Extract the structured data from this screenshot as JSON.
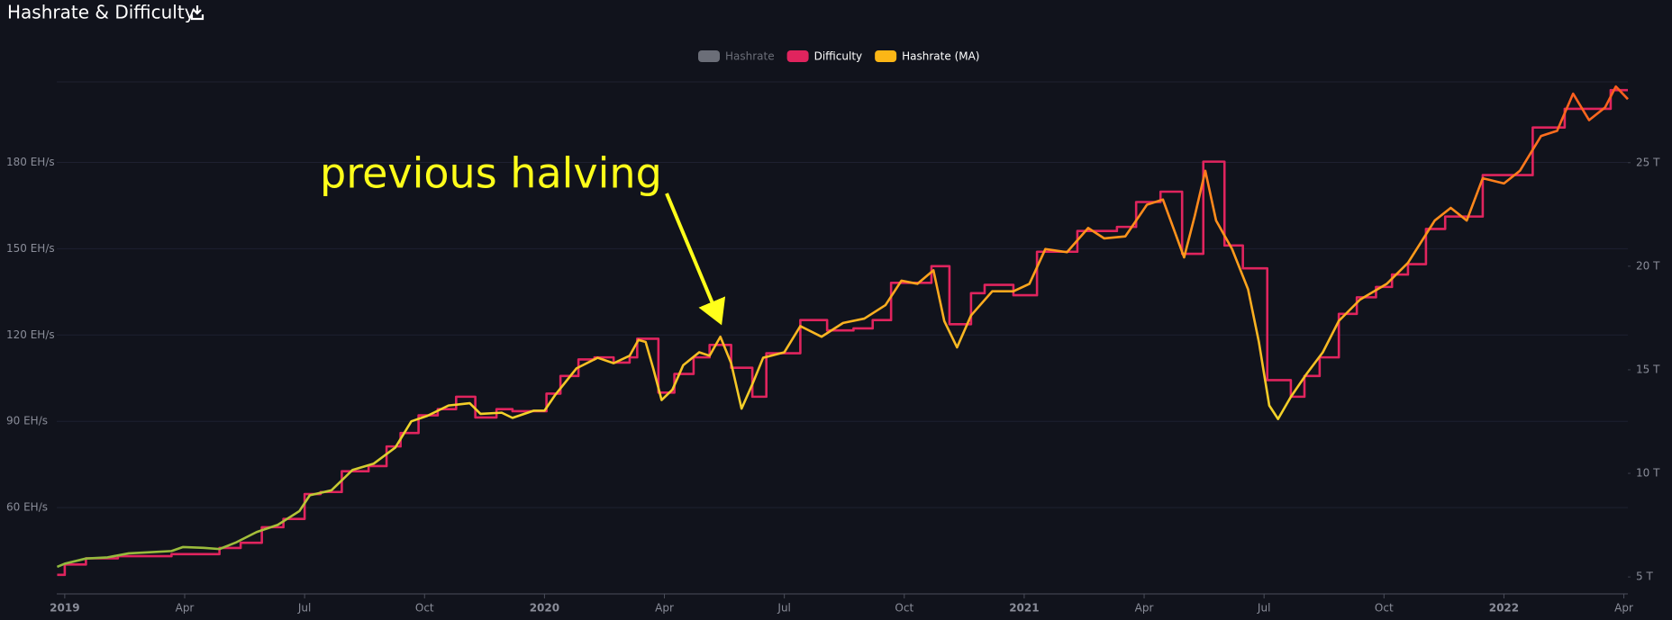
{
  "title": "Hashrate & Difficulty",
  "chart_data": {
    "type": "line",
    "xlim": [
      -0.2,
      39.1
    ],
    "ylim": [
      30,
      208
    ],
    "y2lim": [
      4.18,
      28.9
    ],
    "grid": true,
    "xticks": [
      {
        "value": 0,
        "label": "2019"
      },
      {
        "value": 3,
        "label": "Apr"
      },
      {
        "value": 6,
        "label": "Jul"
      },
      {
        "value": 9,
        "label": "Oct"
      },
      {
        "value": 12,
        "label": "2020"
      },
      {
        "value": 15,
        "label": "Apr"
      },
      {
        "value": 18,
        "label": "Jul"
      },
      {
        "value": 21,
        "label": "Oct"
      },
      {
        "value": 24,
        "label": "2021"
      },
      {
        "value": 27,
        "label": "Apr"
      },
      {
        "value": 30,
        "label": "Jul"
      },
      {
        "value": 33,
        "label": "Oct"
      },
      {
        "value": 36,
        "label": "2022"
      },
      {
        "value": 39,
        "label": "Apr"
      }
    ],
    "yticks": [
      {
        "value": 60,
        "label": "60 EH/s"
      },
      {
        "value": 90,
        "label": "90 EH/s"
      },
      {
        "value": 120,
        "label": "120 EH/s"
      },
      {
        "value": 150,
        "label": "150 EH/s"
      },
      {
        "value": 180,
        "label": "180 EH/s"
      }
    ],
    "y2ticks": [
      {
        "value": 5,
        "label": "5 T"
      },
      {
        "value": 10,
        "label": "10 T"
      },
      {
        "value": 15,
        "label": "15 T"
      },
      {
        "value": 20,
        "label": "20 T"
      },
      {
        "value": 25,
        "label": "25 T"
      }
    ],
    "hidden_series": {
      "name": "Hashrate",
      "color": "#6b6e78"
    },
    "series": [
      {
        "name": "Difficulty",
        "color": "#e0245e",
        "axis": "y2",
        "step": true,
        "x": [
          -0.19,
          0,
          0.53,
          1.33,
          2.67,
          3.87,
          4.4,
          4.93,
          5.47,
          6,
          6.4,
          6.93,
          7.6,
          8.05,
          8.4,
          8.85,
          9.33,
          9.79,
          10.27,
          10.8,
          11.2,
          11.65,
          12.05,
          12.4,
          12.85,
          13.25,
          13.73,
          14.13,
          14.32,
          14.85,
          15.25,
          15.73,
          16.13,
          16.67,
          17.2,
          17.55,
          18.4,
          19.07,
          19.73,
          20.21,
          20.67,
          21.68,
          22.13,
          22.67,
          23.01,
          23.73,
          24.32,
          24.93,
          25.33,
          25.87,
          26.32,
          26.8,
          27.41,
          27.95,
          28.48,
          29.01,
          29.47,
          30.08,
          30.67,
          31.01,
          31.39,
          31.87,
          32.32,
          32.8,
          33.2,
          33.6,
          34.05,
          34.53,
          34.99,
          35.47,
          36.72,
          37.52,
          38.67
        ],
        "values": [
          5.1,
          5.6,
          5.9,
          6.0,
          6.1,
          6.4,
          6.65,
          7.4,
          7.8,
          9.0,
          9.1,
          10.1,
          10.35,
          11.3,
          11.95,
          12.8,
          13.1,
          13.7,
          12.7,
          13.1,
          13.0,
          13.0,
          13.85,
          14.7,
          15.5,
          15.6,
          15.35,
          15.6,
          16.5,
          13.9,
          14.8,
          15.6,
          16.2,
          15.1,
          13.7,
          15.8,
          17.4,
          16.9,
          17.0,
          17.4,
          19.2,
          20.0,
          17.2,
          18.7,
          19.1,
          18.6,
          20.7,
          20.7,
          21.7,
          21.7,
          21.9,
          23.1,
          23.6,
          20.6,
          25.05,
          21.0,
          19.9,
          14.5,
          13.7,
          14.7,
          15.6,
          17.7,
          18.5,
          19.0,
          19.6,
          20.1,
          21.8,
          22.4,
          22.4,
          24.4,
          26.7,
          27.6,
          28.5
        ]
      },
      {
        "name": "Hashrate (MA)",
        "color": "#fbb616",
        "gradient": [
          "#7cb342",
          "#f2d52a",
          "#ff9a1a",
          "#ff5a1f"
        ],
        "x": [
          -0.19,
          0,
          0.53,
          1.07,
          1.6,
          2.13,
          2.67,
          2.96,
          3.47,
          3.87,
          4.27,
          4.8,
          5.33,
          5.87,
          6.13,
          6.67,
          7.2,
          7.73,
          8.27,
          8.67,
          9.07,
          9.6,
          10.13,
          10.4,
          10.93,
          11.2,
          11.73,
          12,
          12.27,
          12.8,
          13.33,
          13.73,
          14.13,
          14.35,
          14.53,
          14.72,
          14.93,
          15.2,
          15.47,
          15.87,
          16.13,
          16.4,
          16.67,
          16.93,
          17.2,
          17.47,
          18,
          18.4,
          18.93,
          19.47,
          20,
          20.53,
          20.93,
          21.33,
          21.73,
          22,
          22.32,
          22.67,
          23.2,
          23.73,
          24.13,
          24.53,
          25.07,
          25.6,
          26,
          26.53,
          27.07,
          27.47,
          28,
          28.27,
          28.53,
          28.8,
          29.2,
          29.6,
          29.87,
          30.13,
          30.35,
          30.67,
          31.07,
          31.47,
          31.87,
          32.4,
          33.07,
          33.6,
          34.27,
          34.67,
          35.07,
          35.47,
          36,
          36.4,
          36.93,
          37.33,
          37.73,
          38.13,
          38.53,
          38.8,
          39.1
        ],
        "values": [
          39.4,
          40.5,
          42.3,
          42.7,
          44.1,
          44.5,
          44.9,
          46.3,
          46,
          45.6,
          47.8,
          51.5,
          54,
          58.8,
          64.3,
          66,
          73.1,
          75.3,
          80.9,
          90,
          91.9,
          95.5,
          96.3,
          92.6,
          93,
          91.2,
          93.7,
          93.7,
          99.2,
          108.4,
          112.1,
          110.2,
          112.8,
          118.3,
          117.6,
          108.4,
          97.4,
          101,
          109.5,
          114,
          112.8,
          119.4,
          110.2,
          94.4,
          102.9,
          112.1,
          114,
          123.1,
          119.4,
          124.2,
          125.7,
          130.4,
          138.9,
          137.8,
          142.5,
          124.9,
          115.7,
          126.8,
          135.2,
          135.2,
          137.8,
          149.9,
          148.8,
          157.2,
          153.6,
          154.3,
          165.3,
          167.1,
          147,
          161.6,
          177.1,
          159.8,
          149.9,
          135.9,
          117.6,
          95.5,
          90.8,
          98.5,
          106.6,
          114,
          124.9,
          132.3,
          137.8,
          145.1,
          159.8,
          164.2,
          159.8,
          174.5,
          172.7,
          177.1,
          189.2,
          191,
          203.9,
          194.7,
          199.1,
          206.4,
          202
        ]
      }
    ],
    "annotation": "previous halving"
  }
}
